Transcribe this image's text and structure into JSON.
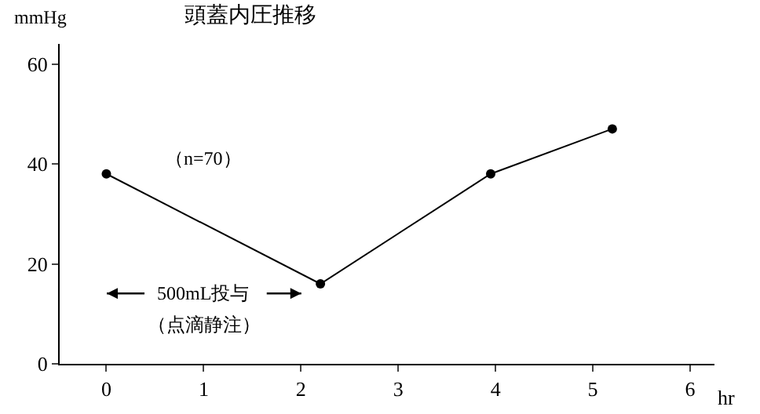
{
  "chart_data": {
    "type": "line",
    "title": "頭蓋内圧推移",
    "xlabel": "hr",
    "ylabel": "mmHg",
    "x": [
      0,
      2.2,
      3.95,
      5.2
    ],
    "series": [
      {
        "color": "#000000",
        "values": [
          38,
          16,
          38,
          47
        ]
      }
    ],
    "xlim": [
      -0.48,
      6.25
    ],
    "xticks": [
      0,
      1,
      2,
      3,
      4,
      5,
      6
    ],
    "ylim": [
      0,
      64
    ],
    "yticks": [
      0,
      20,
      40,
      60
    ],
    "grid": false,
    "marker": "circle",
    "line_style": "solid",
    "annotations": [
      "（n=70）",
      "500mL投与",
      "（点滴静注）"
    ]
  }
}
